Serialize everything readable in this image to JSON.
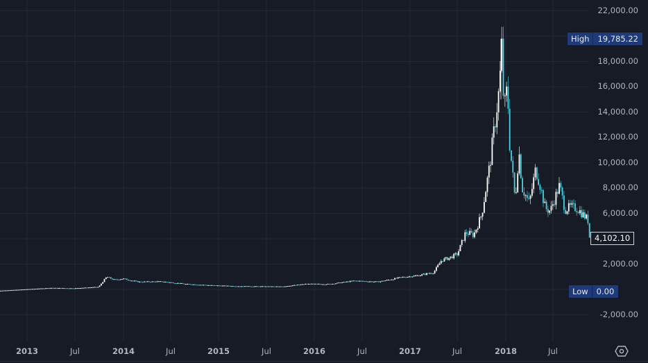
{
  "chart_data": {
    "type": "candlestick",
    "title": "",
    "xlabel": "",
    "ylabel": "",
    "ylim": [
      -3000,
      23000
    ],
    "grid": true,
    "theme": {
      "background": "#171b26",
      "grid": "#232733",
      "up": "#ffffff",
      "down": "#4dd0e1",
      "axis_text": "#b2b5be"
    },
    "y_ticks": [
      "22,000.00",
      "18,000.00",
      "16,000.00",
      "14,000.00",
      "12,000.00",
      "10,000.00",
      "8,000.00",
      "6,000.00",
      "2,000.00",
      "-2,000.00"
    ],
    "y_tick_values": [
      22000,
      18000,
      16000,
      14000,
      12000,
      10000,
      8000,
      6000,
      2000,
      -2000
    ],
    "x_ticks": [
      "2013",
      "Jul",
      "2014",
      "Jul",
      "2015",
      "Jul",
      "2016",
      "Jul",
      "2017",
      "Jul",
      "2018",
      "Jul"
    ],
    "high": {
      "label": "High",
      "value": "19,785.22"
    },
    "low": {
      "label": "Low",
      "value": "0.00"
    },
    "last_price": "4,102.10",
    "series_approx": {
      "x": [
        "2013-01",
        "2013-04",
        "2013-07",
        "2013-10",
        "2013-11",
        "2013-12",
        "2014-01",
        "2014-03",
        "2014-06",
        "2014-09",
        "2014-12",
        "2015-03",
        "2015-06",
        "2015-09",
        "2015-12",
        "2016-03",
        "2016-06",
        "2016-09",
        "2016-12",
        "2017-02",
        "2017-04",
        "2017-05",
        "2017-06",
        "2017-07",
        "2017-08",
        "2017-09",
        "2017-10",
        "2017-11",
        "2017-12-08",
        "2017-12-17",
        "2017-12-25",
        "2018-01-07",
        "2018-01-16",
        "2018-02-06",
        "2018-02-20",
        "2018-03-05",
        "2018-04-01",
        "2018-04-25",
        "2018-05-10",
        "2018-06-01",
        "2018-06-20",
        "2018-07-25",
        "2018-08-15",
        "2018-09-05",
        "2018-10-01",
        "2018-11-10",
        "2018-11-20"
      ],
      "close": [
        15,
        120,
        90,
        200,
        1000,
        750,
        850,
        600,
        620,
        420,
        330,
        260,
        240,
        230,
        430,
        420,
        680,
        600,
        960,
        1100,
        1350,
        2300,
        2500,
        2800,
        4500,
        4300,
        5900,
        9800,
        16000,
        19300,
        14000,
        16000,
        11500,
        7000,
        11000,
        8000,
        6800,
        9500,
        8400,
        6400,
        6200,
        8200,
        6300,
        6500,
        6400,
        5500,
        4102
      ]
    }
  },
  "axes": {
    "y": [
      "22,000.00",
      "18,000.00",
      "16,000.00",
      "14,000.00",
      "12,000.00",
      "10,000.00",
      "8,000.00",
      "6,000.00",
      "2,000.00",
      "-2,000.00"
    ],
    "x": [
      "2013",
      "Jul",
      "2014",
      "Jul",
      "2015",
      "Jul",
      "2016",
      "Jul",
      "2017",
      "Jul",
      "2018",
      "Jul"
    ]
  },
  "labels": {
    "high_key": "High",
    "high_val": "19,785.22",
    "low_key": "Low",
    "low_val": "0.00",
    "last_price": "4,102.10"
  },
  "icons": {
    "settings": "settings-hexagon-icon"
  }
}
